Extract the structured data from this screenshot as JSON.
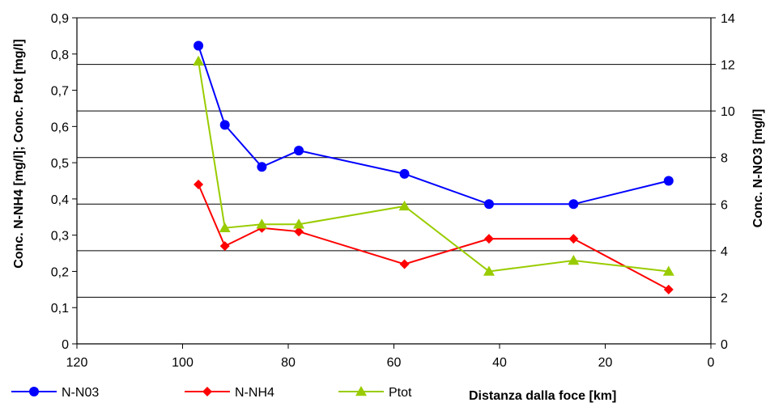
{
  "chart_data": {
    "type": "line",
    "x": [
      97,
      92,
      85,
      78,
      58,
      42,
      26,
      8
    ],
    "xlim": [
      120,
      0
    ],
    "xticks": [
      120,
      100,
      80,
      60,
      40,
      20,
      0
    ],
    "xlabel": "Distanza dalla foce [km]",
    "ylabel_left": "Conc. N-NH4 [mg/l]; Conc. Ptot [mg/l]",
    "ylabel_right": "Conc. N-NO3 [mg/l]",
    "ylim_left": [
      0,
      0.9
    ],
    "yticks_left": [
      "0",
      "0,1",
      "0,2",
      "0,3",
      "0,4",
      "0,5",
      "0,6",
      "0,7",
      "0,8",
      "0,9"
    ],
    "ylim_right": [
      0,
      14
    ],
    "yticks_right": [
      "0",
      "2",
      "4",
      "6",
      "8",
      "10",
      "12",
      "14"
    ],
    "grid": "horizontal lines at right-axis ticks",
    "legend_position": "bottom-left",
    "series": [
      {
        "name": "N-N03",
        "axis": "right",
        "color": "#0000FF",
        "marker": "circle",
        "values": [
          12.8,
          9.4,
          7.6,
          8.3,
          7.3,
          6.0,
          6.0,
          7.0
        ]
      },
      {
        "name": "N-NH4",
        "axis": "left",
        "color": "#FF0000",
        "marker": "diamond",
        "values": [
          0.44,
          0.27,
          0.32,
          0.31,
          0.22,
          0.29,
          0.29,
          0.15
        ]
      },
      {
        "name": "Ptot",
        "axis": "left",
        "color": "#99CC00",
        "marker": "triangle",
        "values": [
          0.78,
          0.32,
          0.33,
          0.33,
          0.38,
          0.2,
          0.23,
          0.2
        ]
      }
    ]
  }
}
